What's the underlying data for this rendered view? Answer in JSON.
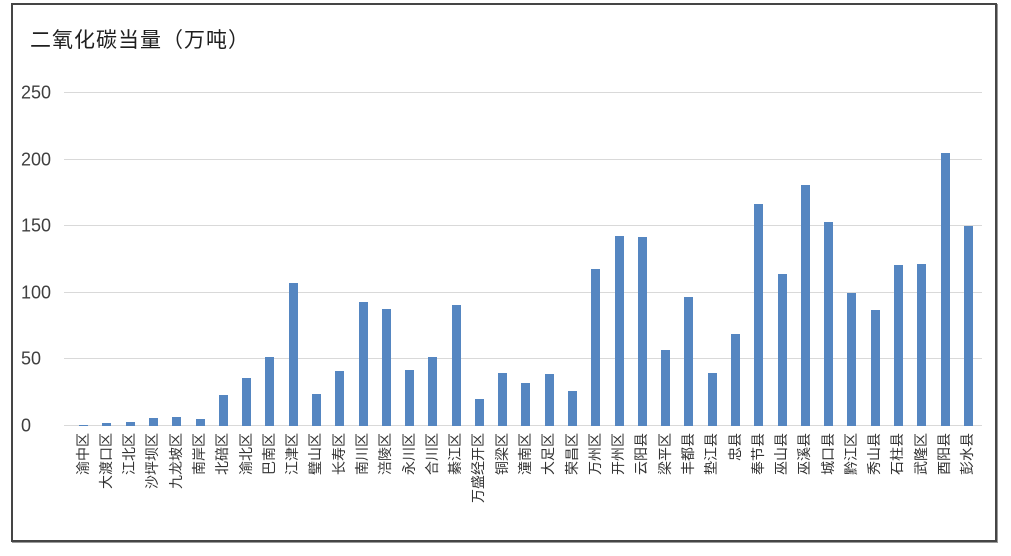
{
  "chart_data": {
    "type": "bar",
    "title": "二氧化碳当量（万吨）",
    "categories": [
      "渝中区",
      "大渡口区",
      "江北区",
      "沙坪坝区",
      "九龙坡区",
      "南岸区",
      "北碚区",
      "渝北区",
      "巴南区",
      "江津区",
      "璧山区",
      "长寿区",
      "南川区",
      "涪陵区",
      "永川区",
      "合川区",
      "綦江区",
      "万盛经开区",
      "铜梁区",
      "潼南区",
      "大足区",
      "荣昌区",
      "万州区",
      "开州区",
      "云阳县",
      "梁平区",
      "丰都县",
      "垫江县",
      "忠县",
      "奉节县",
      "巫山县",
      "巫溪县",
      "城口县",
      "黔江区",
      "秀山县",
      "石柱县",
      "武隆区",
      "酉阳县",
      "彭水县"
    ],
    "values": [
      1,
      2,
      3,
      6,
      7,
      5,
      23,
      36,
      52,
      107,
      24,
      41,
      93,
      88,
      42,
      52,
      91,
      20,
      40,
      32,
      39,
      26,
      118,
      143,
      142,
      57,
      97,
      40,
      69,
      167,
      114,
      181,
      153,
      100,
      87,
      121,
      122,
      205,
      150
    ],
    "xlabel": "",
    "ylabel": "",
    "ylim": [
      0,
      250
    ],
    "yticks": [
      0,
      50,
      100,
      150,
      200,
      250
    ],
    "grid": "horizontal",
    "legend": "none",
    "bar_color": "#5586c1",
    "gridline_color": "#d9d9d9"
  }
}
